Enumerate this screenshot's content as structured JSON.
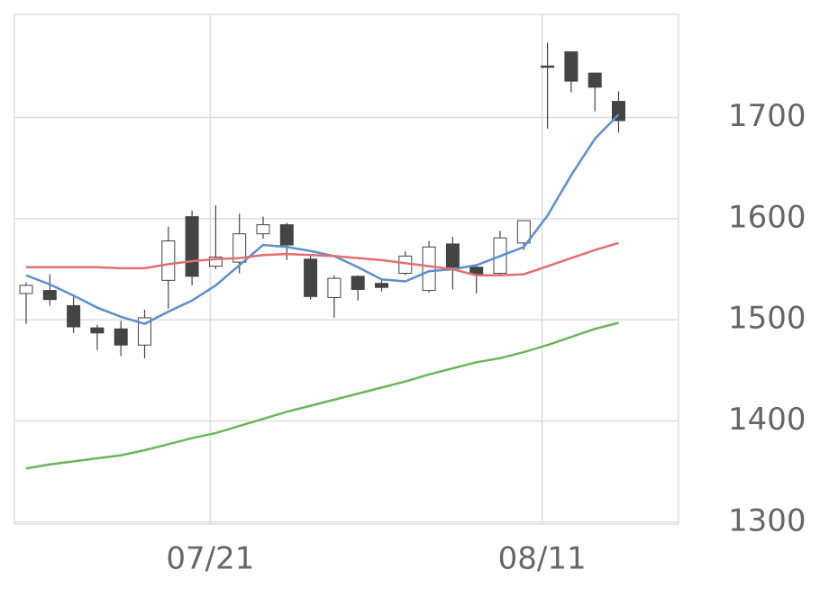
{
  "chart_data": {
    "type": "candlestick",
    "categories": [
      null,
      null,
      null,
      null,
      null,
      null,
      null,
      null,
      "07/21",
      null,
      null,
      null,
      null,
      null,
      null,
      null,
      null,
      null,
      null,
      null,
      null,
      null,
      "08/11",
      null,
      null,
      null
    ],
    "open": [
      1526,
      1529,
      1514,
      1492,
      1491,
      1475,
      1539,
      1602,
      1553,
      1557,
      1585,
      1594,
      1560,
      1522,
      1543,
      1536,
      1546,
      1529,
      1575,
      1552,
      1546,
      1576,
      1751,
      1765,
      1744,
      1716
    ],
    "high": [
      1537,
      1545,
      1523,
      1495,
      1499,
      1510,
      1592,
      1608,
      1613,
      1605,
      1602,
      1596,
      1563,
      1544,
      1544,
      1539,
      1568,
      1578,
      1582,
      1555,
      1588,
      1598,
      1774,
      1765,
      1744,
      1726
    ],
    "low": [
      1496,
      1514,
      1487,
      1470,
      1464,
      1462,
      1511,
      1534,
      1550,
      1546,
      1580,
      1559,
      1520,
      1502,
      1519,
      1528,
      1544,
      1527,
      1530,
      1526,
      1544,
      1569,
      1689,
      1725,
      1706,
      1685
    ],
    "close": [
      1534,
      1520,
      1493,
      1487,
      1475,
      1502,
      1578,
      1543,
      1562,
      1585,
      1594,
      1574,
      1523,
      1541,
      1530,
      1532,
      1563,
      1572,
      1552,
      1545,
      1581,
      1598,
      1751,
      1736,
      1730,
      1697
    ],
    "up_color": "#ffffff",
    "down_color": "#444444",
    "lines": [
      {
        "color": "#5b8fd0",
        "values": [
          1544,
          1535,
          1524,
          1512,
          1503,
          1496,
          1508,
          1519,
          1534,
          1554,
          1574,
          1572,
          1568,
          1563,
          1552,
          1540,
          1538,
          1548,
          1550,
          1554,
          1563,
          1572,
          1603,
          1643,
          1679,
          1703
        ]
      },
      {
        "color": "#e07070",
        "values": [
          1552,
          1552,
          1552,
          1552,
          1551,
          1551,
          1555,
          1558,
          1560,
          1561,
          1564,
          1565,
          1564,
          1563,
          1561,
          1559,
          1556,
          1553,
          1550,
          1544,
          1544,
          1545,
          1553,
          1561,
          1569,
          1576
        ]
      },
      {
        "color": "#6ab65a",
        "values": [
          1353,
          1357,
          1360,
          1363,
          1366,
          1371,
          1377,
          1383,
          1388,
          1395,
          1402,
          1409,
          1415,
          1421,
          1427,
          1433,
          1439,
          1446,
          1452,
          1458,
          1462,
          1468,
          1475,
          1483,
          1491,
          1497
        ]
      }
    ],
    "ylim": [
      1298,
      1802
    ],
    "yticks": [
      1300,
      1400,
      1500,
      1600,
      1700
    ],
    "grid": true
  }
}
